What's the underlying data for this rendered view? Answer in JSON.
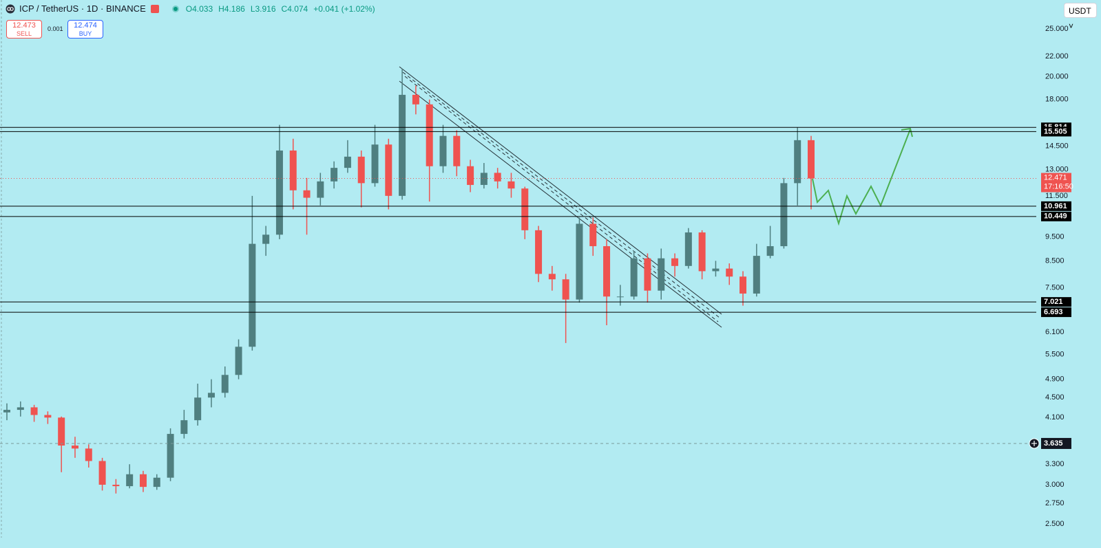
{
  "chart_data": {
    "type": "candlestick",
    "title": "ICP / TetherUS · 1D · BINANCE",
    "ohlc": [
      "O4.033",
      "H4.186",
      "L3.916",
      "C4.074",
      "+0.041 (+1.02%)"
    ],
    "sell_price": 12.473,
    "sell_label": "SELL",
    "spread": 0.001,
    "buy_price": 12.474,
    "buy_label": "BUY",
    "currency": "USDT",
    "log_scale": true,
    "grid": false,
    "up_color": "#4f7f80",
    "down_color": "#ef5350",
    "ylim": [
      2.345,
      28.6
    ],
    "yticks": [
      {
        "value": 25,
        "label": "25.000"
      },
      {
        "value": 22,
        "label": "22.000"
      },
      {
        "value": 20,
        "label": "20.000"
      },
      {
        "value": 18,
        "label": "18.000"
      },
      {
        "value": 14.5,
        "label": "14.500"
      },
      {
        "value": 13,
        "label": "13.000"
      },
      {
        "value": 11.5,
        "label": "11.500"
      },
      {
        "value": 9.5,
        "label": "9.500"
      },
      {
        "value": 8.5,
        "label": "8.500"
      },
      {
        "value": 7.5,
        "label": "7.500"
      },
      {
        "value": 6.1,
        "label": "6.100"
      },
      {
        "value": 5.5,
        "label": "5.500"
      },
      {
        "value": 4.9,
        "label": "4.900"
      },
      {
        "value": 4.5,
        "label": "4.500"
      },
      {
        "value": 4.1,
        "label": "4.100"
      },
      {
        "value": 3.3,
        "label": "3.300"
      },
      {
        "value": 3,
        "label": "3.000"
      },
      {
        "value": 2.75,
        "label": "2.750"
      },
      {
        "value": 2.5,
        "label": "2.500"
      }
    ],
    "open": [
      4.2,
      4.25,
      4.3,
      4.15,
      4.1,
      3.6,
      3.55,
      3.35,
      3.0,
      2.98,
      3.15,
      2.97,
      3.1,
      3.8,
      4.05,
      4.5,
      4.6,
      5.0,
      5.7,
      9.2,
      9.6,
      14.2,
      11.8,
      11.4,
      12.3,
      13.1,
      13.8,
      12.2,
      14.6,
      11.5,
      18.4,
      17.6,
      13.2,
      15.2,
      13.2,
      12.1,
      12.8,
      12.3,
      11.9,
      9.8,
      8.0,
      7.8,
      7.1,
      10.1,
      9.1,
      7.2,
      7.2,
      8.6,
      7.4,
      8.6,
      8.3,
      9.7,
      8.1,
      8.2,
      7.9,
      7.3,
      8.7,
      9.1,
      12.2,
      14.9
    ],
    "high": [
      4.38,
      4.42,
      4.35,
      4.22,
      4.12,
      3.75,
      3.62,
      3.4,
      3.08,
      3.3,
      3.2,
      3.15,
      3.9,
      4.25,
      4.8,
      4.9,
      5.2,
      5.9,
      11.5,
      10.0,
      16.0,
      15.0,
      12.5,
      12.8,
      13.5,
      14.9,
      14.2,
      16.0,
      15.0,
      20.8,
      19.2,
      18.0,
      16.0,
      15.6,
      13.6,
      13.4,
      13.1,
      12.8,
      12.0,
      10.0,
      8.3,
      8.0,
      10.4,
      10.4,
      9.4,
      7.6,
      8.9,
      8.8,
      9.0,
      8.8,
      9.9,
      9.8,
      8.5,
      8.4,
      8.1,
      9.2,
      10.0,
      12.5,
      15.8,
      15.2
    ],
    "low": [
      4.05,
      4.12,
      4.02,
      3.98,
      3.18,
      3.4,
      3.25,
      2.92,
      2.88,
      2.95,
      2.9,
      2.93,
      3.05,
      3.72,
      3.95,
      4.3,
      4.5,
      4.9,
      5.6,
      8.7,
      9.4,
      10.8,
      9.6,
      11.0,
      11.9,
      12.8,
      10.9,
      12.0,
      10.8,
      11.3,
      16.8,
      11.2,
      12.8,
      12.6,
      11.7,
      11.9,
      11.9,
      11.4,
      9.4,
      7.7,
      7.4,
      5.8,
      7.0,
      8.7,
      6.3,
      6.9,
      7.1,
      7.0,
      7.1,
      7.9,
      8.2,
      7.8,
      7.9,
      7.6,
      6.9,
      7.2,
      8.6,
      9.0,
      11.0,
      10.8
    ],
    "close": [
      4.25,
      4.3,
      4.15,
      4.1,
      3.6,
      3.55,
      3.35,
      3.0,
      2.98,
      3.15,
      2.97,
      3.1,
      3.8,
      4.05,
      4.5,
      4.6,
      5.0,
      5.7,
      9.2,
      9.6,
      14.2,
      11.8,
      11.4,
      12.3,
      13.1,
      13.8,
      12.2,
      14.6,
      11.5,
      18.4,
      17.6,
      13.2,
      15.2,
      13.2,
      12.1,
      12.8,
      12.3,
      11.9,
      9.8,
      8.0,
      7.8,
      7.1,
      10.1,
      9.1,
      7.2,
      7.2,
      8.6,
      7.4,
      8.6,
      8.3,
      9.7,
      8.1,
      8.2,
      7.9,
      7.3,
      8.7,
      9.1,
      12.2,
      14.9,
      12.47
    ],
    "levels": [
      15.814,
      15.505,
      10.961,
      10.449,
      7.021,
      6.693
    ],
    "last_price": 12.471,
    "countdown": "17:16:50",
    "alert_price": 3.635
  }
}
